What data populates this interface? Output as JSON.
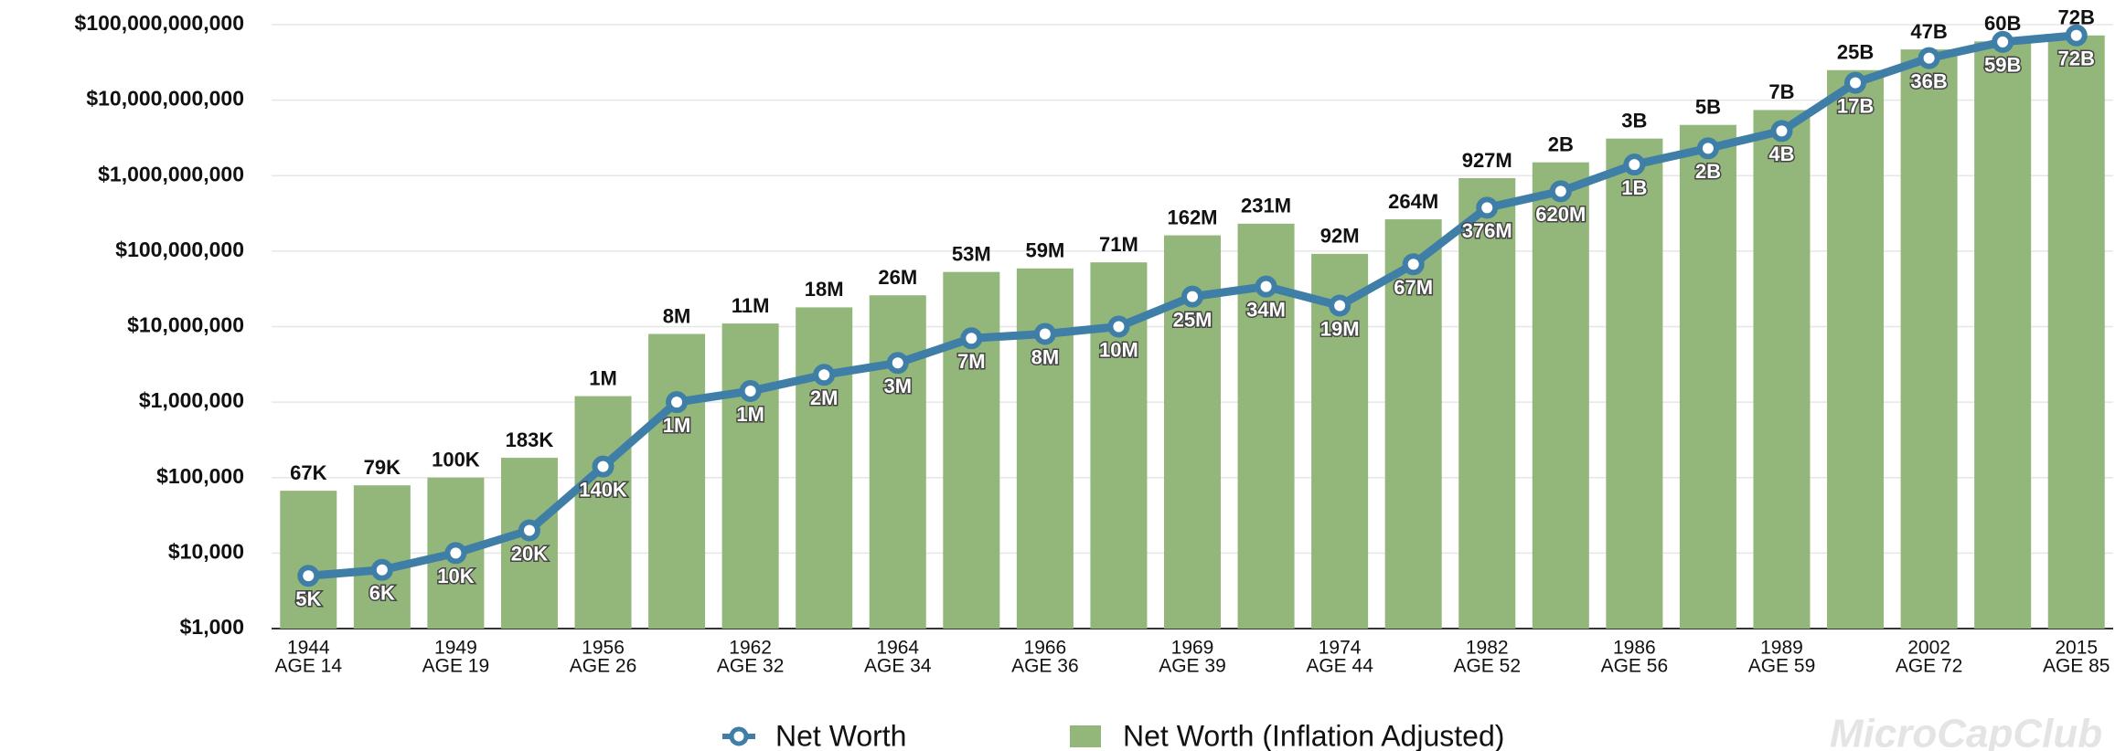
{
  "chart_data": {
    "type": "bar_line",
    "categories": [
      "1944",
      null,
      "1949",
      null,
      "1956",
      null,
      "1962",
      null,
      "1964",
      null,
      "1966",
      null,
      "1969",
      null,
      "1974",
      null,
      "1982",
      null,
      "1986",
      null,
      "1989",
      null,
      "2002",
      null,
      "2015"
    ],
    "sublabels": [
      "AGE 14",
      null,
      "AGE 19",
      null,
      "AGE 26",
      null,
      "AGE 32",
      null,
      "AGE 34",
      null,
      "AGE 36",
      null,
      "AGE 39",
      null,
      "AGE 44",
      null,
      "AGE 52",
      null,
      "AGE 56",
      null,
      "AGE 59",
      null,
      "AGE 72",
      null,
      "AGE 85"
    ],
    "series": [
      {
        "name": "Net Worth (Inflation Adjusted)",
        "kind": "bar",
        "color": "#93b77a",
        "values": [
          67000,
          79000,
          100000,
          183000,
          1200000,
          8000000,
          11000000,
          18000000,
          26000000,
          53000000,
          59000000,
          71000000,
          162000000,
          231000000,
          92000000,
          264000000,
          927000000,
          1500000000,
          3100000000,
          4700000000,
          7400000000,
          25000000000,
          47000000000,
          60000000000,
          72000000000
        ],
        "value_labels": [
          "67K",
          "79K",
          "100K",
          "183K",
          "1M",
          "8M",
          "11M",
          "18M",
          "26M",
          "53M",
          "59M",
          "71M",
          "162M",
          "231M",
          "92M",
          "264M",
          "927M",
          "2B",
          "3B",
          "5B",
          "7B",
          "25B",
          "47B",
          "60B",
          "72B"
        ]
      },
      {
        "name": "Net Worth",
        "kind": "line",
        "color": "#3f7ea6",
        "values": [
          5000,
          6000,
          10000,
          20000,
          140000,
          1000000,
          1400000,
          2300000,
          3300000,
          7000000,
          8000000,
          10000000,
          25000000,
          34000000,
          19000000,
          67000000,
          376000000,
          620000000,
          1400000000,
          2300000000,
          3900000000,
          17000000000,
          36000000000,
          59000000000,
          72000000000
        ],
        "value_labels": [
          "5K",
          "6K",
          "10K",
          "20K",
          "140K",
          "1M",
          "1M",
          "2M",
          "3M",
          "7M",
          "8M",
          "10M",
          "25M",
          "34M",
          "19M",
          "67M",
          "376M",
          "620M",
          "1B",
          "2B",
          "4B",
          "17B",
          "36B",
          "59B",
          "72B"
        ]
      }
    ],
    "log_scale": true,
    "ylim": [
      1000,
      100000000000
    ],
    "yticks": [
      {
        "value": 1000,
        "label": "$1,000"
      },
      {
        "value": 10000,
        "label": "$10,000"
      },
      {
        "value": 100000,
        "label": "$100,000"
      },
      {
        "value": 1000000,
        "label": "$1,000,000"
      },
      {
        "value": 10000000,
        "label": "$10,000,000"
      },
      {
        "value": 100000000,
        "label": "$100,000,000"
      },
      {
        "value": 1000000000,
        "label": "$1,000,000,000"
      },
      {
        "value": 10000000000,
        "label": "$10,000,000,000"
      },
      {
        "value": 100000000000,
        "label": "$100,000,000,000"
      }
    ],
    "grid": true,
    "legend": "bottom",
    "watermark": "MicroCapClub"
  }
}
